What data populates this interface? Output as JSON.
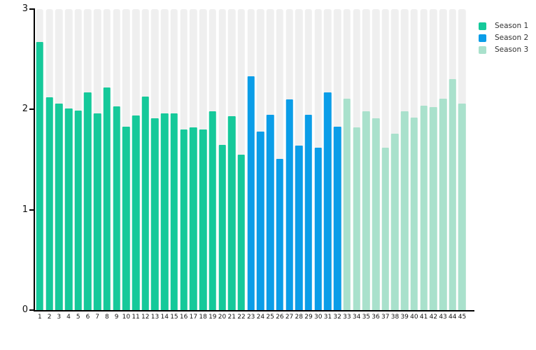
{
  "chart_data": {
    "type": "bar",
    "title": "",
    "xlabel": "",
    "ylabel": "",
    "ylim": [
      0,
      3
    ],
    "yticks": [
      "0",
      "1",
      "2",
      "3"
    ],
    "grid": false,
    "legend_position": "top-right",
    "track_color": "#EFEFEF",
    "axis_color": "#000000",
    "categories": [
      "1",
      "2",
      "3",
      "4",
      "5",
      "6",
      "7",
      "8",
      "9",
      "10",
      "11",
      "12",
      "13",
      "14",
      "15",
      "16",
      "17",
      "18",
      "19",
      "20",
      "21",
      "22",
      "23",
      "24",
      "25",
      "26",
      "27",
      "28",
      "29",
      "30",
      "31",
      "32",
      "33",
      "34",
      "35",
      "36",
      "37",
      "38",
      "39",
      "40",
      "41",
      "42",
      "43",
      "44",
      "45"
    ],
    "series": [
      {
        "name": "Season 1",
        "color": "#15C99A",
        "from": 1,
        "to": 22,
        "values": [
          2.67,
          2.12,
          2.06,
          2.01,
          1.99,
          2.17,
          1.96,
          2.22,
          2.03,
          1.83,
          1.94,
          2.13,
          1.91,
          1.96,
          1.96,
          1.8,
          1.82,
          1.8,
          1.98,
          1.65,
          1.93,
          1.55
        ]
      },
      {
        "name": "Season 2",
        "color": "#0A9DE8",
        "from": 23,
        "to": 32,
        "values": [
          2.33,
          1.78,
          1.95,
          1.51,
          2.1,
          1.64,
          1.95,
          1.62,
          2.17,
          1.83
        ]
      },
      {
        "name": "Season 3",
        "color": "#A9E1CC",
        "from": 33,
        "to": 45,
        "values": [
          2.11,
          1.82,
          1.98,
          1.91,
          1.62,
          1.76,
          1.98,
          1.92,
          2.04,
          2.02,
          2.11,
          2.3,
          2.06
        ]
      }
    ]
  }
}
